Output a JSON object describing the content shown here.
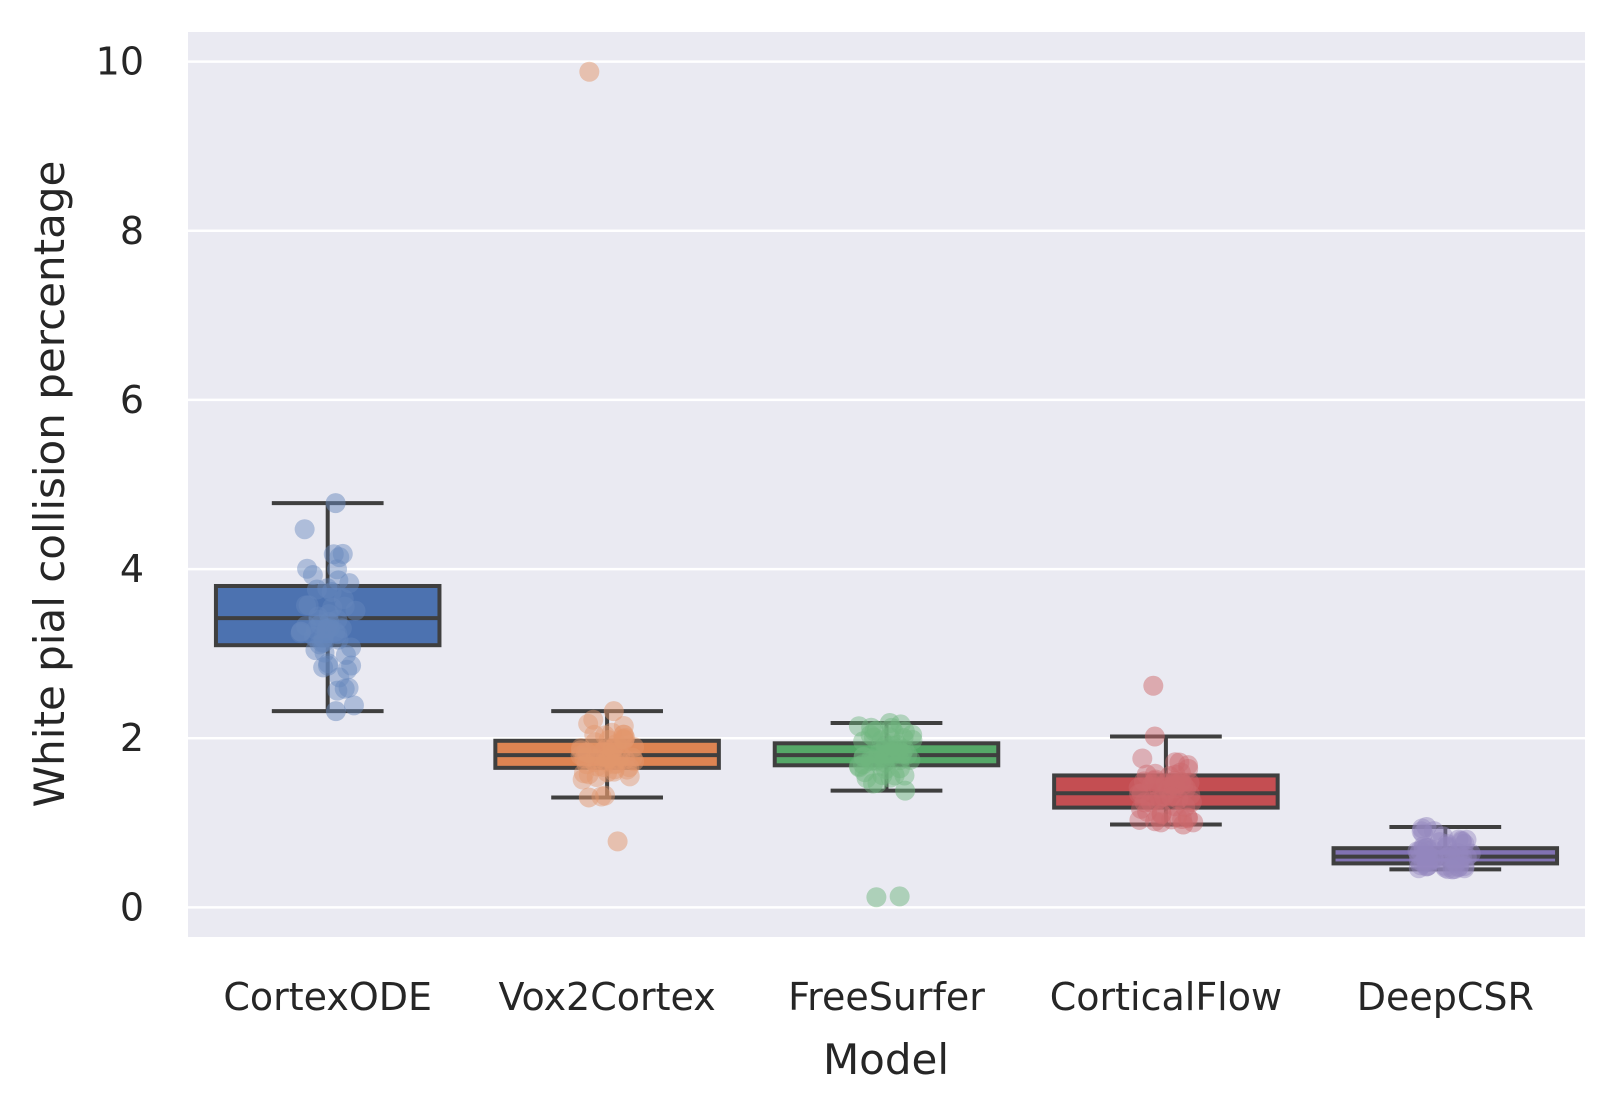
{
  "chart_data": {
    "type": "box",
    "xlabel": "Model",
    "ylabel": "White pial collision percentage",
    "ylim": [
      -0.35,
      10.35
    ],
    "yticks": [
      0,
      2,
      4,
      6,
      8,
      10
    ],
    "grid": true,
    "categories": [
      "CortexODE",
      "Vox2Cortex",
      "FreeSurfer",
      "CorticalFlow",
      "DeepCSR"
    ],
    "boxes": [
      {
        "category": "CortexODE",
        "color": "#4c72b0",
        "whisker_low": 2.32,
        "q1": 3.1,
        "median": 3.42,
        "q3": 3.8,
        "whisker_high": 4.78,
        "outliers": []
      },
      {
        "category": "Vox2Cortex",
        "color": "#dd8452",
        "whisker_low": 1.3,
        "q1": 1.65,
        "median": 1.8,
        "q3": 1.97,
        "whisker_high": 2.32,
        "outliers": [
          9.88,
          0.78
        ]
      },
      {
        "category": "FreeSurfer",
        "color": "#55a868",
        "whisker_low": 1.38,
        "q1": 1.68,
        "median": 1.8,
        "q3": 1.94,
        "whisker_high": 2.18,
        "outliers": [
          0.12,
          0.13
        ]
      },
      {
        "category": "CorticalFlow",
        "color": "#c44e52",
        "whisker_low": 0.98,
        "q1": 1.18,
        "median": 1.35,
        "q3": 1.56,
        "whisker_high": 2.02,
        "outliers": [
          2.62
        ]
      },
      {
        "category": "DeepCSR",
        "color": "#8172b3",
        "whisker_low": 0.45,
        "q1": 0.52,
        "median": 0.6,
        "q3": 0.7,
        "whisker_high": 0.95,
        "outliers": []
      }
    ]
  }
}
